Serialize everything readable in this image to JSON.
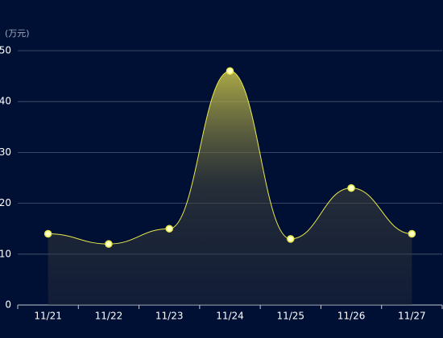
{
  "chart_data": {
    "type": "line",
    "y_label": "(万元)",
    "categories": [
      "11/21",
      "11/22",
      "11/23",
      "11/24",
      "11/25",
      "11/26",
      "11/27"
    ],
    "values": [
      14,
      12,
      15,
      46,
      13,
      23,
      14
    ],
    "color": "#e8e84a",
    "ylim": [
      0,
      50
    ],
    "yticks": [
      0,
      10,
      20,
      30,
      40,
      50
    ],
    "grid": true,
    "area": true
  }
}
